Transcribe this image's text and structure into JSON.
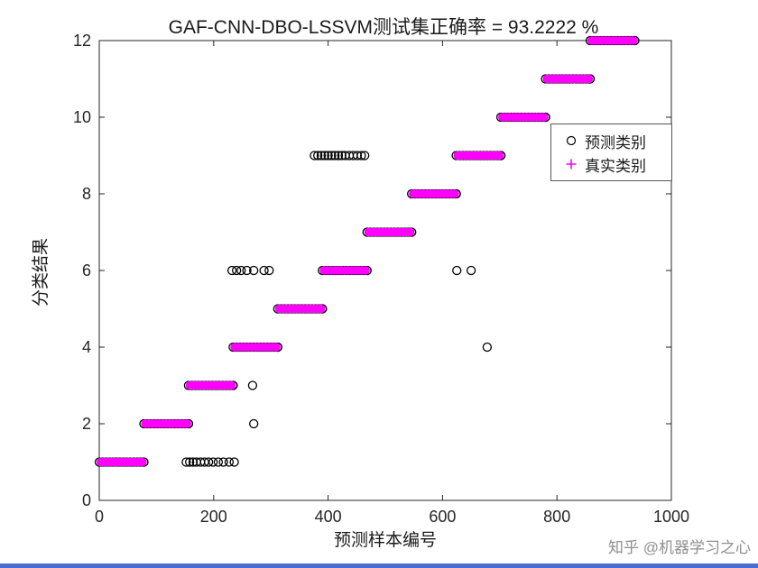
{
  "figure": {
    "background": "#ffffff"
  },
  "watermark": "知乎 @机器学习之心",
  "footer": {
    "color": "#4a6dd2"
  },
  "chart_data": {
    "type": "scatter",
    "title": "GAF-CNN-DBO-LSSVM测试集正确率 = 93.2222 %",
    "accuracy_text": "93.2222 %",
    "xlabel": "预测样本编号",
    "ylabel": "分类结果",
    "xlim": [
      0,
      1000
    ],
    "ylim": [
      0,
      12
    ],
    "xticks": [
      0,
      200,
      400,
      600,
      800,
      1000
    ],
    "yticks": [
      0,
      2,
      4,
      6,
      8,
      10,
      12
    ],
    "grid": false,
    "legend": {
      "position": "upper-right",
      "items": [
        {
          "label": "预测类别",
          "marker": "circle",
          "color": "#000000"
        },
        {
          "label": "真实类别",
          "marker": "plus",
          "color": "#ff00ff"
        }
      ]
    },
    "colors": {
      "true_class": "#ff00ff",
      "predicted_class": "#000000",
      "axis": "#262626"
    },
    "true_class_bands": [
      {
        "class": 1,
        "x_start": 0,
        "x_end": 78
      },
      {
        "class": 2,
        "x_start": 78,
        "x_end": 156
      },
      {
        "class": 3,
        "x_start": 156,
        "x_end": 234
      },
      {
        "class": 4,
        "x_start": 234,
        "x_end": 312
      },
      {
        "class": 5,
        "x_start": 312,
        "x_end": 390
      },
      {
        "class": 6,
        "x_start": 390,
        "x_end": 468
      },
      {
        "class": 7,
        "x_start": 468,
        "x_end": 546
      },
      {
        "class": 8,
        "x_start": 546,
        "x_end": 624
      },
      {
        "class": 9,
        "x_start": 624,
        "x_end": 702
      },
      {
        "class": 10,
        "x_start": 702,
        "x_end": 780
      },
      {
        "class": 11,
        "x_start": 780,
        "x_end": 858
      },
      {
        "class": 12,
        "x_start": 858,
        "x_end": 936
      }
    ],
    "predicted_outliers": [
      {
        "y": 1,
        "x": [
          152,
          158,
          164,
          170,
          177,
          184,
          191,
          199,
          208,
          217,
          227,
          236
        ]
      },
      {
        "y": 2,
        "x": [
          270
        ]
      },
      {
        "y": 3,
        "x": [
          268
        ]
      },
      {
        "y": 6,
        "x": [
          232,
          240,
          248,
          258,
          270,
          288,
          297
        ]
      },
      {
        "y": 9,
        "x": [
          376,
          382,
          388,
          394,
          400,
          406,
          412,
          418,
          424,
          430,
          437,
          444,
          451,
          458,
          464
        ]
      },
      {
        "y": 6,
        "x": [
          625,
          650
        ]
      },
      {
        "y": 4,
        "x": [
          678
        ]
      }
    ]
  }
}
